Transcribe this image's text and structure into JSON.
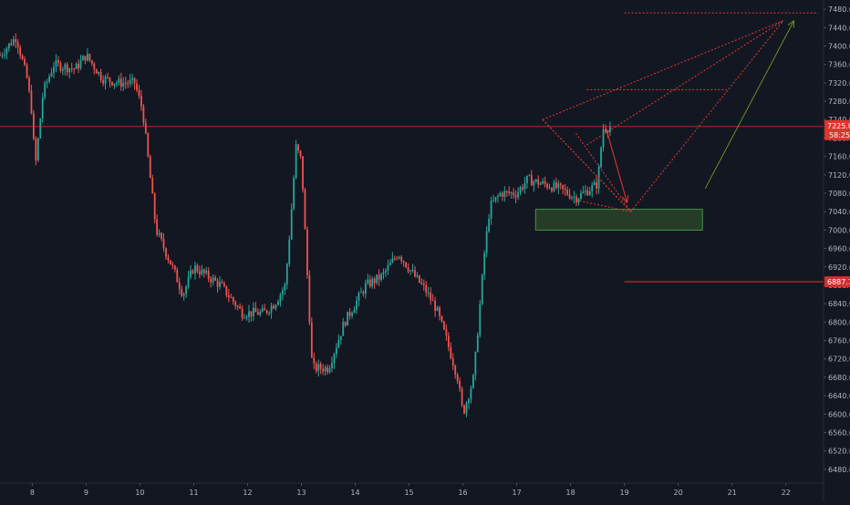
{
  "colors": {
    "background": "#131722",
    "up": "#26a69a",
    "down": "#ef5350",
    "axis_text": "#b2b5be",
    "price_line": "#e0352b",
    "drawing": "#e53935",
    "target_arrow": "#6b8e23",
    "zone_fill": "#2c4a2a",
    "zone_stroke": "#4caf50",
    "support_line": "#d32f2f"
  },
  "chart_data": {
    "type": "candlestick",
    "title": "",
    "xlabel": "",
    "ylabel": "",
    "ylim": [
      6450,
      7500
    ],
    "xlim": [
      7.4,
      22.7
    ],
    "grid": false,
    "y_ticks": [
      6480,
      6520,
      6560,
      6600,
      6640,
      6680,
      6720,
      6760,
      6800,
      6840,
      6880,
      6920,
      6960,
      7000,
      7040,
      7080,
      7120,
      7160,
      7200,
      7240,
      7280,
      7320,
      7360,
      7400,
      7440,
      7480
    ],
    "y_tick_labels": [
      "6480.0",
      "6520.0",
      "6560.0",
      "6600.0",
      "6640.0",
      "6680.0",
      "6720.0",
      "6760.0",
      "6800.0",
      "6840.0",
      "6880.0",
      "6920.0",
      "6960.0",
      "7000.0",
      "7040.0",
      "7080.0",
      "7120.0",
      "7160.0",
      "7200.0",
      "7240.0",
      "7280.0",
      "7320.0",
      "7360.0",
      "7400.0",
      "7440.0",
      "7480.0"
    ],
    "x_ticks": [
      8,
      9,
      10,
      11,
      12,
      13,
      14,
      15,
      16,
      17,
      18,
      19,
      20,
      21,
      22
    ],
    "x_tick_labels": [
      "8",
      "9",
      "10",
      "11",
      "12",
      "13",
      "14",
      "15",
      "16",
      "17",
      "18",
      "19",
      "20",
      "21",
      "22"
    ],
    "last_price": {
      "value": 7225.0,
      "label": "7225.0",
      "countdown": "58:25"
    },
    "support_level": {
      "value": 6887.7,
      "label": "6887.7",
      "x_start": 19.0
    },
    "path_anchors": [
      [
        7.4,
        7380
      ],
      [
        7.7,
        7420
      ],
      [
        7.9,
        7330
      ],
      [
        8.0,
        7250
      ],
      [
        8.05,
        7130
      ],
      [
        8.2,
        7300
      ],
      [
        8.4,
        7360
      ],
      [
        8.8,
        7350
      ],
      [
        9.0,
        7380
      ],
      [
        9.3,
        7330
      ],
      [
        9.6,
        7320
      ],
      [
        9.9,
        7320
      ],
      [
        10.05,
        7260
      ],
      [
        10.3,
        7000
      ],
      [
        10.6,
        6920
      ],
      [
        10.8,
        6860
      ],
      [
        11.0,
        6920
      ],
      [
        11.5,
        6880
      ],
      [
        11.9,
        6820
      ],
      [
        12.1,
        6820
      ],
      [
        12.3,
        6820
      ],
      [
        12.5,
        6840
      ],
      [
        12.7,
        6880
      ],
      [
        12.8,
        7020
      ],
      [
        12.9,
        7180
      ],
      [
        13.0,
        7150
      ],
      [
        13.1,
        6920
      ],
      [
        13.2,
        6700
      ],
      [
        13.5,
        6700
      ],
      [
        13.8,
        6800
      ],
      [
        14.2,
        6880
      ],
      [
        14.5,
        6900
      ],
      [
        14.8,
        6950
      ],
      [
        15.1,
        6900
      ],
      [
        15.3,
        6870
      ],
      [
        15.5,
        6830
      ],
      [
        15.7,
        6760
      ],
      [
        15.9,
        6680
      ],
      [
        16.0,
        6600
      ],
      [
        16.2,
        6680
      ],
      [
        16.4,
        6950
      ],
      [
        16.5,
        7050
      ],
      [
        16.7,
        7080
      ],
      [
        17.0,
        7080
      ],
      [
        17.2,
        7110
      ],
      [
        17.5,
        7100
      ],
      [
        17.8,
        7090
      ],
      [
        18.1,
        7070
      ],
      [
        18.5,
        7100
      ],
      [
        18.6,
        7220
      ],
      [
        18.75,
        7225
      ]
    ],
    "pitchfork": {
      "lines": [
        [
          [
            17.48,
            7240
          ],
          [
            19.12,
            7040
          ]
        ],
        [
          [
            17.48,
            7240
          ],
          [
            21.95,
            7455
          ]
        ],
        [
          [
            19.12,
            7040
          ],
          [
            21.95,
            7455
          ]
        ],
        [
          [
            18.3,
            7185
          ],
          [
            21.95,
            7455
          ]
        ],
        [
          [
            17.48,
            7240
          ],
          [
            19.12,
            7040
          ]
        ],
        [
          [
            18.1,
            7210
          ],
          [
            19.12,
            7040
          ]
        ]
      ],
      "top_level": {
        "value": 7472,
        "x_start": 19.0,
        "x_end": 22.6
      },
      "mid_level": {
        "value": 7305,
        "x_start": 18.3,
        "x_end": 20.9
      },
      "lower_dash": [
        [
          18.1,
          7065
        ],
        [
          19.12,
          7040
        ]
      ]
    },
    "down_arrow": [
      [
        18.65,
        7225
      ],
      [
        19.05,
        7060
      ]
    ],
    "target_arrow": [
      [
        20.5,
        7090
      ],
      [
        22.15,
        7455
      ]
    ],
    "demand_zone": {
      "x0": 17.35,
      "x1": 20.45,
      "y0": 7000,
      "y1": 7045
    }
  }
}
